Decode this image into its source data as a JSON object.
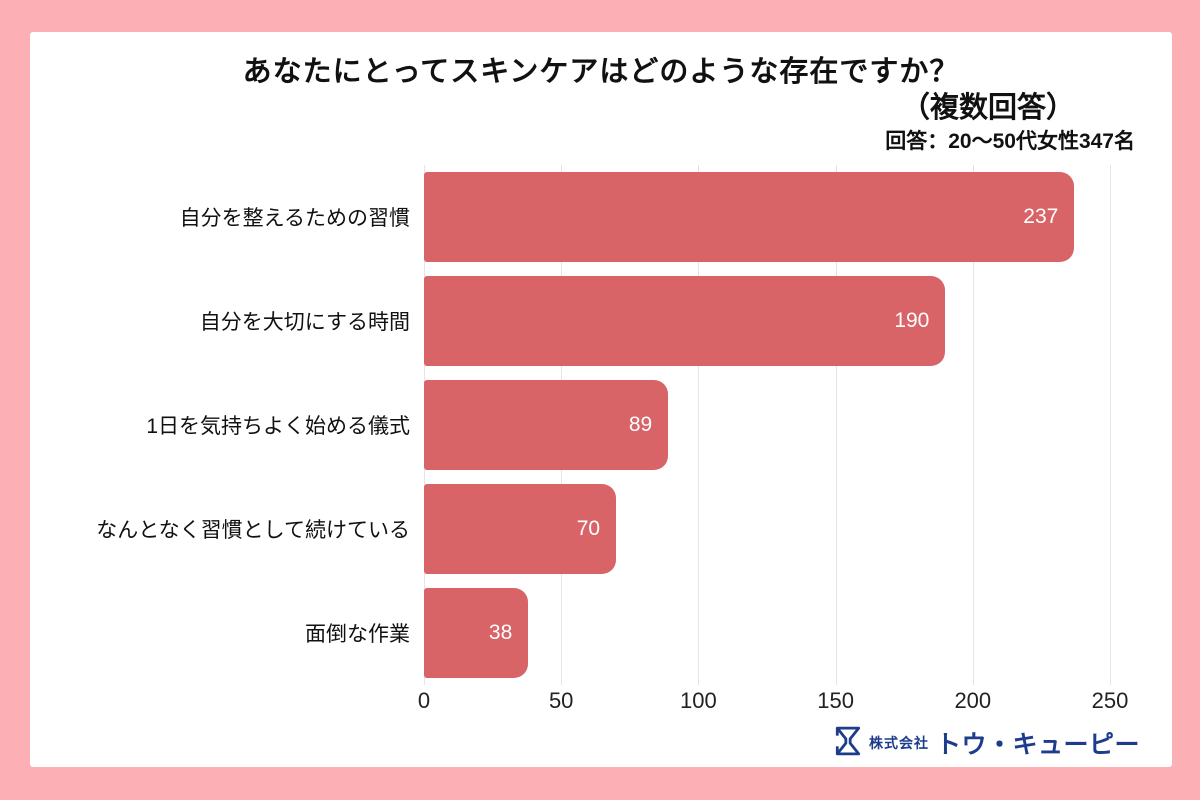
{
  "header": {
    "title": "あなたにとってスキンケアはどのような存在ですか？",
    "subtitle": "（複数回答）",
    "respondents": "回答：20〜50代女性347名"
  },
  "chart_data": {
    "type": "bar",
    "orientation": "horizontal",
    "title": "あなたにとってスキンケアはどのような存在ですか？（複数回答）",
    "subtitle": "回答：20〜50代女性347名",
    "categories": [
      "自分を整えるための習慣",
      "自分を大切にする時間",
      "1日を気持ちよく始める儀式",
      "なんとなく習慣として続けている",
      "面倒な作業"
    ],
    "values": [
      237,
      190,
      89,
      70,
      38
    ],
    "xlabel": "",
    "ylabel": "",
    "xlim": [
      0,
      250
    ],
    "xticks": [
      0,
      50,
      100,
      150,
      200,
      250
    ],
    "grid": "vertical-gridlines-only",
    "legend": "none",
    "bar_color": "#D96468",
    "value_label_position": "inside-end",
    "value_label_color": "#FFFFFF"
  },
  "footer": {
    "logo": {
      "icon": "hourglass-logo-icon",
      "prefix": "株式会社",
      "name": "トウ・キューピー",
      "color": "#1D3C8C"
    }
  },
  "colors": {
    "frame": "#FCAFB5",
    "panel": "#FFFFFF",
    "bar": "#D96468",
    "gridline": "#E4E4E4",
    "text": "#111111",
    "value_text": "#FFFFFF"
  }
}
